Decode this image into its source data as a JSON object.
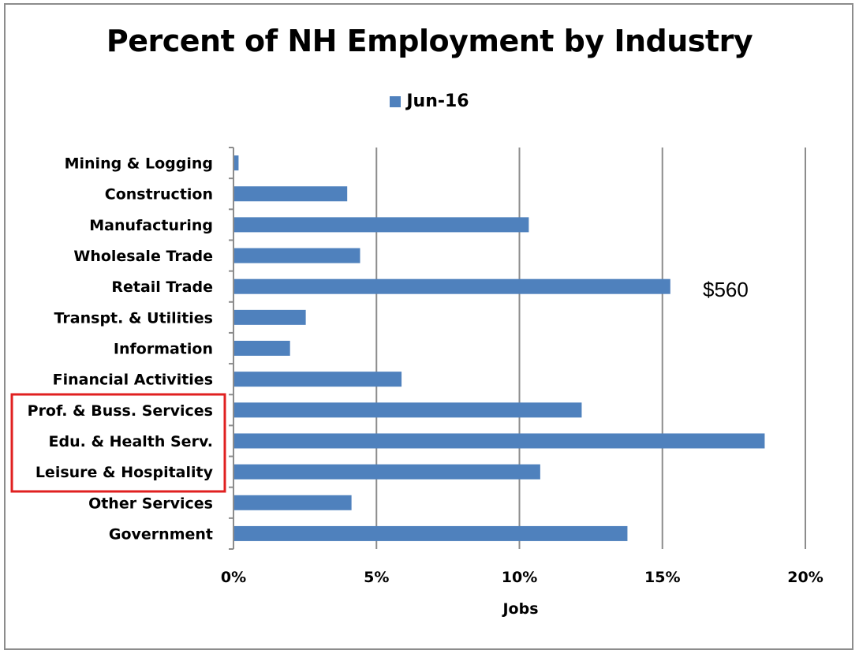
{
  "chart_data": {
    "type": "bar",
    "orientation": "horizontal",
    "title": "Percent of NH Employment by Industry",
    "xlabel": "Jobs",
    "ylabel": "",
    "xlim": [
      0,
      20
    ],
    "x_ticks": [
      0,
      5,
      10,
      15,
      20
    ],
    "x_tick_labels": [
      "0%",
      "5%",
      "10%",
      "15%",
      "20%"
    ],
    "grid": "vertical major gridlines",
    "legend_position": "top",
    "categories": [
      "Mining & Logging",
      "Construction",
      "Manufacturing",
      "Wholesale Trade",
      "Retail Trade",
      "Transpt. & Utilities",
      "Information",
      "Financial Activities",
      "Prof. & Buss. Services",
      "Edu. & Health Serv.",
      "Leisure & Hospitality",
      "Other Services",
      "Government"
    ],
    "series": [
      {
        "name": "Jun-16",
        "color": "#4F81BD",
        "values": [
          0.15,
          3.95,
          10.3,
          4.4,
          15.25,
          2.5,
          1.95,
          5.85,
          12.15,
          18.55,
          10.7,
          4.1,
          13.75
        ]
      }
    ],
    "annotations": [
      {
        "text": "$560",
        "near_category": "Retail Trade"
      }
    ],
    "highlight_box": {
      "categories": [
        "Prof. & Buss. Services",
        "Edu. & Health Serv.",
        "Leisure & Hospitality"
      ],
      "color": "#E02020"
    }
  }
}
